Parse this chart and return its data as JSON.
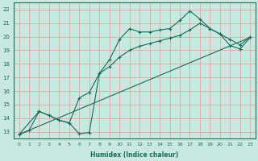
{
  "xlabel": "Humidex (Indice chaleur)",
  "bg_color": "#c8e8e0",
  "grid_color": "#e0a8a8",
  "line_color": "#1a6b5a",
  "spine_color": "#1a6b5a",
  "xlim": [
    -0.5,
    23.5
  ],
  "ylim": [
    12.5,
    22.5
  ],
  "xticks": [
    0,
    1,
    2,
    3,
    4,
    5,
    6,
    7,
    8,
    9,
    10,
    11,
    12,
    13,
    14,
    15,
    16,
    17,
    18,
    19,
    20,
    21,
    22,
    23
  ],
  "yticks": [
    13,
    14,
    15,
    16,
    17,
    18,
    19,
    20,
    21,
    22
  ],
  "line1_x": [
    0,
    1,
    2,
    3,
    4,
    5,
    6,
    7,
    8,
    9,
    10,
    11,
    12,
    13,
    14,
    15,
    16,
    17,
    18,
    19,
    20,
    21,
    22,
    23
  ],
  "line1_y": [
    12.8,
    13.1,
    14.5,
    14.2,
    13.85,
    13.65,
    12.85,
    12.95,
    17.3,
    18.3,
    19.8,
    20.6,
    20.35,
    20.35,
    20.5,
    20.6,
    21.2,
    21.9,
    21.3,
    20.6,
    20.2,
    19.35,
    19.1,
    19.95
  ],
  "line2_x": [
    0,
    2,
    3,
    4,
    5,
    6,
    7,
    8,
    9,
    10,
    11,
    12,
    13,
    14,
    15,
    16,
    17,
    18,
    19,
    20,
    21,
    22,
    23
  ],
  "line2_y": [
    12.8,
    14.5,
    14.2,
    13.85,
    13.65,
    15.5,
    15.9,
    17.3,
    17.8,
    18.5,
    19.0,
    19.3,
    19.5,
    19.7,
    19.9,
    20.1,
    20.5,
    21.0,
    20.6,
    20.2,
    19.8,
    19.4,
    20.0
  ],
  "line3_x": [
    0,
    23
  ],
  "line3_y": [
    12.8,
    19.95
  ]
}
